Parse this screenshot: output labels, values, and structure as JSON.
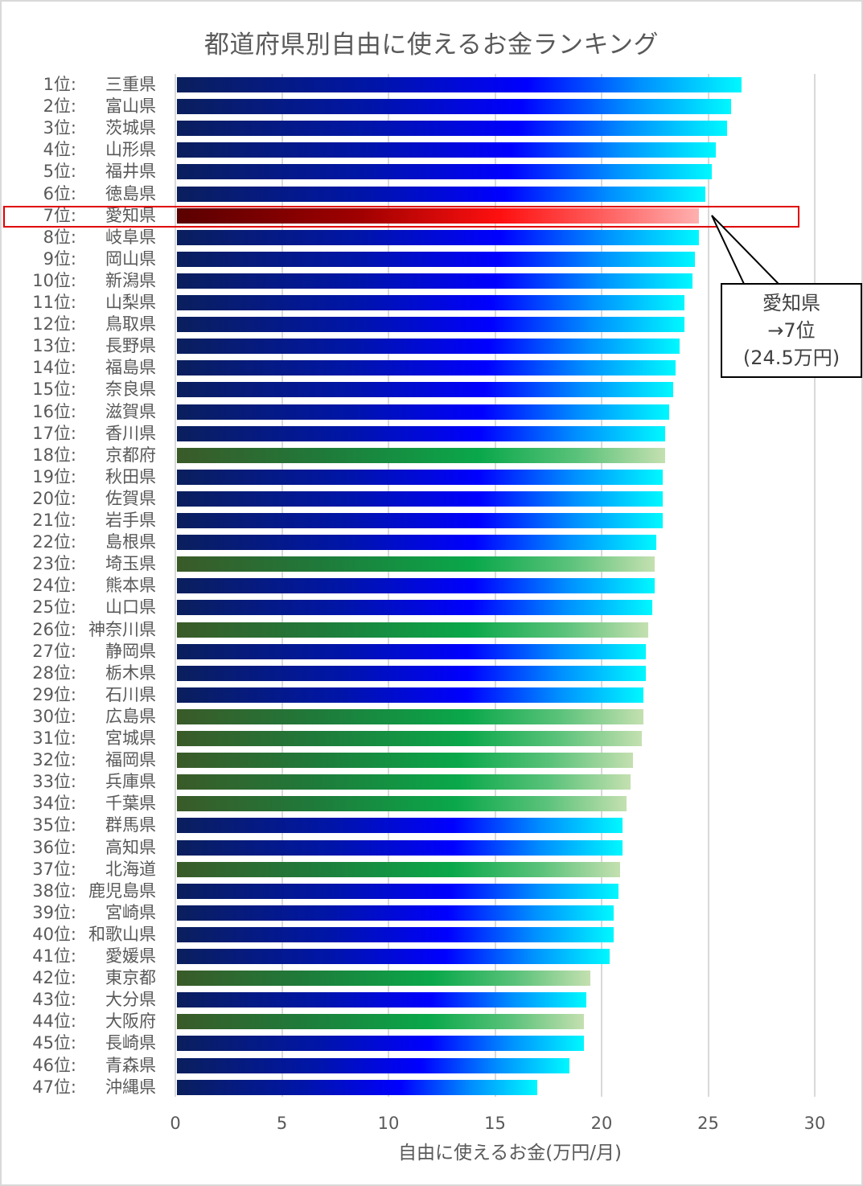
{
  "chart_data": {
    "type": "bar",
    "orientation": "horizontal",
    "title": "都道府県別自由に使えるお金ランキング",
    "xlabel": "自由に使えるお金(万円/月)",
    "ylabel": "",
    "xlim": [
      0,
      30
    ],
    "x_ticks": [
      "0",
      "5",
      "10",
      "15",
      "20",
      "25",
      "30"
    ],
    "grid": true,
    "legend": null,
    "categories": [
      "1位: 三重県",
      "2位: 富山県",
      "3位: 茨城県",
      "4位: 山形県",
      "5位: 福井県",
      "6位: 徳島県",
      "7位: 愛知県",
      "8位: 岐阜県",
      "9位: 岡山県",
      "10位: 新潟県",
      "11位: 山梨県",
      "12位: 鳥取県",
      "13位: 長野県",
      "14位: 福島県",
      "15位: 奈良県",
      "16位: 滋賀県",
      "17位: 香川県",
      "18位: 京都府",
      "19位: 秋田県",
      "20位: 佐賀県",
      "21位: 岩手県",
      "22位: 島根県",
      "23位: 埼玉県",
      "24位: 熊本県",
      "25位: 山口県",
      "26位: 神奈川県",
      "27位: 静岡県",
      "28位: 栃木県",
      "29位: 石川県",
      "30位: 広島県",
      "31位: 宮城県",
      "32位: 福岡県",
      "33位: 兵庫県",
      "34位: 千葉県",
      "35位: 群馬県",
      "36位: 高知県",
      "37位: 北海道",
      "38位: 鹿児島県",
      "39位: 宮崎県",
      "40位: 和歌山県",
      "41位: 愛媛県",
      "42位: 東京都",
      "43位: 大分県",
      "44位: 大阪府",
      "45位: 長崎県",
      "46位: 青森県",
      "47位: 沖縄県"
    ],
    "values": [
      26.5,
      26.0,
      25.8,
      25.3,
      25.1,
      24.8,
      24.5,
      24.5,
      24.3,
      24.2,
      23.8,
      23.8,
      23.6,
      23.4,
      23.3,
      23.1,
      22.9,
      22.9,
      22.8,
      22.8,
      22.8,
      22.5,
      22.4,
      22.4,
      22.3,
      22.1,
      22.0,
      22.0,
      21.9,
      21.9,
      21.8,
      21.4,
      21.3,
      21.1,
      20.9,
      20.9,
      20.8,
      20.7,
      20.5,
      20.5,
      20.3,
      19.4,
      19.2,
      19.1,
      19.1,
      18.4,
      16.9
    ],
    "highlight": {
      "category": "7位: 愛知県",
      "value": 24.5,
      "color": "#ff0000"
    },
    "bar_color_groups": {
      "blue": "#0000ff",
      "green": "#0aa84a",
      "red": "#ff1010"
    },
    "annotations": [
      "愛知県 →7位 (24.5万円)"
    ]
  },
  "title": "都道府県別自由に使えるお金ランキング",
  "xlabel": "自由に使えるお金(万円/月)",
  "ticks": [
    "0",
    "5",
    "10",
    "15",
    "20",
    "25",
    "30"
  ],
  "rows": [
    {
      "rank": "1位:",
      "pref": "三重県",
      "value": 26.5,
      "color": "blue"
    },
    {
      "rank": "2位:",
      "pref": "富山県",
      "value": 26.0,
      "color": "blue"
    },
    {
      "rank": "3位:",
      "pref": "茨城県",
      "value": 25.8,
      "color": "blue"
    },
    {
      "rank": "4位:",
      "pref": "山形県",
      "value": 25.3,
      "color": "blue"
    },
    {
      "rank": "5位:",
      "pref": "福井県",
      "value": 25.1,
      "color": "blue"
    },
    {
      "rank": "6位:",
      "pref": "徳島県",
      "value": 24.8,
      "color": "blue"
    },
    {
      "rank": "7位:",
      "pref": "愛知県",
      "value": 24.5,
      "color": "red"
    },
    {
      "rank": "8位:",
      "pref": "岐阜県",
      "value": 24.5,
      "color": "blue"
    },
    {
      "rank": "9位:",
      "pref": "岡山県",
      "value": 24.3,
      "color": "blue"
    },
    {
      "rank": "10位:",
      "pref": "新潟県",
      "value": 24.2,
      "color": "blue"
    },
    {
      "rank": "11位:",
      "pref": "山梨県",
      "value": 23.8,
      "color": "blue"
    },
    {
      "rank": "12位:",
      "pref": "鳥取県",
      "value": 23.8,
      "color": "blue"
    },
    {
      "rank": "13位:",
      "pref": "長野県",
      "value": 23.6,
      "color": "blue"
    },
    {
      "rank": "14位:",
      "pref": "福島県",
      "value": 23.4,
      "color": "blue"
    },
    {
      "rank": "15位:",
      "pref": "奈良県",
      "value": 23.3,
      "color": "blue"
    },
    {
      "rank": "16位:",
      "pref": "滋賀県",
      "value": 23.1,
      "color": "blue"
    },
    {
      "rank": "17位:",
      "pref": "香川県",
      "value": 22.9,
      "color": "blue"
    },
    {
      "rank": "18位:",
      "pref": "京都府",
      "value": 22.9,
      "color": "green"
    },
    {
      "rank": "19位:",
      "pref": "秋田県",
      "value": 22.8,
      "color": "blue"
    },
    {
      "rank": "20位:",
      "pref": "佐賀県",
      "value": 22.8,
      "color": "blue"
    },
    {
      "rank": "21位:",
      "pref": "岩手県",
      "value": 22.8,
      "color": "blue"
    },
    {
      "rank": "22位:",
      "pref": "島根県",
      "value": 22.5,
      "color": "blue"
    },
    {
      "rank": "23位:",
      "pref": "埼玉県",
      "value": 22.4,
      "color": "green"
    },
    {
      "rank": "24位:",
      "pref": "熊本県",
      "value": 22.4,
      "color": "blue"
    },
    {
      "rank": "25位:",
      "pref": "山口県",
      "value": 22.3,
      "color": "blue"
    },
    {
      "rank": "26位:",
      "pref": "神奈川県",
      "value": 22.1,
      "color": "green"
    },
    {
      "rank": "27位:",
      "pref": "静岡県",
      "value": 22.0,
      "color": "blue"
    },
    {
      "rank": "28位:",
      "pref": "栃木県",
      "value": 22.0,
      "color": "blue"
    },
    {
      "rank": "29位:",
      "pref": "石川県",
      "value": 21.9,
      "color": "blue"
    },
    {
      "rank": "30位:",
      "pref": "広島県",
      "value": 21.9,
      "color": "green"
    },
    {
      "rank": "31位:",
      "pref": "宮城県",
      "value": 21.8,
      "color": "green"
    },
    {
      "rank": "32位:",
      "pref": "福岡県",
      "value": 21.4,
      "color": "green"
    },
    {
      "rank": "33位:",
      "pref": "兵庫県",
      "value": 21.3,
      "color": "green"
    },
    {
      "rank": "34位:",
      "pref": "千葉県",
      "value": 21.1,
      "color": "green"
    },
    {
      "rank": "35位:",
      "pref": "群馬県",
      "value": 20.9,
      "color": "blue"
    },
    {
      "rank": "36位:",
      "pref": "高知県",
      "value": 20.9,
      "color": "blue"
    },
    {
      "rank": "37位:",
      "pref": "北海道",
      "value": 20.8,
      "color": "green"
    },
    {
      "rank": "38位:",
      "pref": "鹿児島県",
      "value": 20.7,
      "color": "blue"
    },
    {
      "rank": "39位:",
      "pref": "宮崎県",
      "value": 20.5,
      "color": "blue"
    },
    {
      "rank": "40位:",
      "pref": "和歌山県",
      "value": 20.5,
      "color": "blue"
    },
    {
      "rank": "41位:",
      "pref": "愛媛県",
      "value": 20.3,
      "color": "blue"
    },
    {
      "rank": "42位:",
      "pref": "東京都",
      "value": 19.4,
      "color": "green"
    },
    {
      "rank": "43位:",
      "pref": "大分県",
      "value": 19.2,
      "color": "blue"
    },
    {
      "rank": "44位:",
      "pref": "大阪府",
      "value": 19.1,
      "color": "green"
    },
    {
      "rank": "45位:",
      "pref": "長崎県",
      "value": 19.1,
      "color": "blue"
    },
    {
      "rank": "46位:",
      "pref": "青森県",
      "value": 18.4,
      "color": "blue"
    },
    {
      "rank": "47位:",
      "pref": "沖縄県",
      "value": 16.9,
      "color": "blue"
    }
  ],
  "callout": {
    "line1": "愛知県",
    "line2": "→7位",
    "line3": "(24.5万円)"
  }
}
